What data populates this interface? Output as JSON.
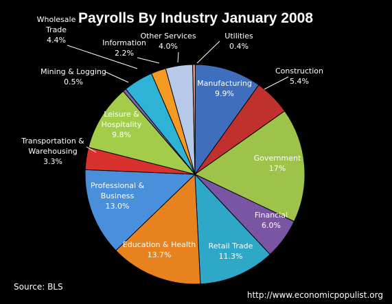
{
  "chart_data": {
    "type": "pie",
    "title": "Payrolls By Industry January 2008",
    "slices": [
      {
        "label": "Manufacturing",
        "value_label": "9.9%",
        "value": 9.9,
        "color": "#3f6fbc",
        "label_pos": "inside"
      },
      {
        "label": "Construction",
        "value_label": "5.4%",
        "value": 5.4,
        "color": "#c0312e",
        "label_pos": "outside"
      },
      {
        "label": "Government",
        "value_label": "17%",
        "value": 17.0,
        "color": "#9dc34a",
        "label_pos": "inside"
      },
      {
        "label": "Financial",
        "value_label": "6.0%",
        "value": 6.0,
        "color": "#7a55a3",
        "label_pos": "inside"
      },
      {
        "label": "Retail Trade",
        "value_label": "11.3%",
        "value": 11.3,
        "color": "#2fa7c6",
        "label_pos": "inside"
      },
      {
        "label": "Education & Health",
        "value_label": "13.7%",
        "value": 13.7,
        "color": "#e8821f",
        "label_pos": "inside"
      },
      {
        "label": "Professional & Business",
        "value_label": "13.0%",
        "value": 13.0,
        "color": "#4a8fdc",
        "label_pos": "inside"
      },
      {
        "label": "Transportation & Warehousing",
        "value_label": "3.3%",
        "value": 3.3,
        "color": "#d8312e",
        "label_pos": "outside"
      },
      {
        "label": "Leisure & Hospitality",
        "value_label": "9.8%",
        "value": 9.8,
        "color": "#a3cd49",
        "label_pos": "inside"
      },
      {
        "label": "Mining & Logging",
        "value_label": "0.5%",
        "value": 0.5,
        "color": "#8063ac",
        "label_pos": "outside"
      },
      {
        "label": "Wholesale Trade",
        "value_label": "4.4%",
        "value": 4.4,
        "color": "#2eb2d6",
        "label_pos": "outside"
      },
      {
        "label": "Information",
        "value_label": "2.2%",
        "value": 2.2,
        "color": "#f59a22",
        "label_pos": "outside"
      },
      {
        "label": "Other Services",
        "value_label": "4.0%",
        "value": 4.0,
        "color": "#b6c9e8",
        "label_pos": "outside"
      },
      {
        "label": "Utilities",
        "value_label": "0.4%",
        "value": 0.4,
        "color": "#e58d8b",
        "label_pos": "outside"
      }
    ],
    "legend": "none"
  },
  "footer": {
    "source": "Source:  BLS",
    "url": "http://www.economicpopulist.org"
  }
}
